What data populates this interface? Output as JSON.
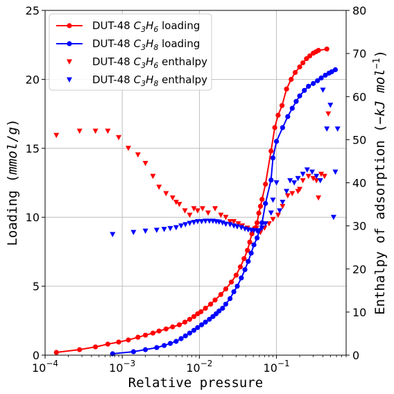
{
  "chart_data": {
    "type": "scatter",
    "xlabel": "Relative pressure",
    "ylabel_left": "Loading (mmol/g)",
    "ylabel_right": "Enthalpy of adsorption (−kJ mol⁻¹)",
    "xscale": "log",
    "xlim": [
      0.0001,
      0.8
    ],
    "ylim_left": [
      0,
      25
    ],
    "ylim_right": [
      0,
      80
    ],
    "grid": true,
    "legend_placement": "top-left",
    "x_ticks": [
      {
        "value": 0.0001,
        "base": "10",
        "exp": "−4"
      },
      {
        "value": 0.001,
        "base": "10",
        "exp": "−3"
      },
      {
        "value": 0.01,
        "base": "10",
        "exp": "−2"
      },
      {
        "value": 0.1,
        "base": "10",
        "exp": "−1"
      }
    ],
    "y_left_ticks": [
      0,
      5,
      10,
      15,
      20,
      25
    ],
    "y_right_ticks": [
      0,
      10,
      20,
      30,
      40,
      50,
      60,
      70,
      80
    ],
    "series": [
      {
        "name": "DUT-48 C3H6 loading",
        "legend_prefix": "DUT-48 ",
        "legend_chem": [
          "C",
          "3",
          "H",
          "6"
        ],
        "legend_suffix": " loading",
        "axis": "left",
        "style": "line-circle",
        "color": "#ff0000",
        "points": [
          [
            0.00014,
            0.2
          ],
          [
            0.00028,
            0.4
          ],
          [
            0.00045,
            0.6
          ],
          [
            0.00065,
            0.8
          ],
          [
            0.0009,
            0.95
          ],
          [
            0.0012,
            1.1
          ],
          [
            0.0016,
            1.3
          ],
          [
            0.002,
            1.45
          ],
          [
            0.0025,
            1.6
          ],
          [
            0.003,
            1.75
          ],
          [
            0.0037,
            1.9
          ],
          [
            0.0045,
            2.05
          ],
          [
            0.0055,
            2.2
          ],
          [
            0.0065,
            2.4
          ],
          [
            0.0075,
            2.6
          ],
          [
            0.0085,
            2.8
          ],
          [
            0.0095,
            3.0
          ],
          [
            0.0105,
            3.15
          ],
          [
            0.012,
            3.4
          ],
          [
            0.014,
            3.7
          ],
          [
            0.016,
            4.0
          ],
          [
            0.019,
            4.4
          ],
          [
            0.022,
            4.8
          ],
          [
            0.026,
            5.3
          ],
          [
            0.03,
            5.8
          ],
          [
            0.034,
            6.4
          ],
          [
            0.038,
            7.0
          ],
          [
            0.042,
            7.6
          ],
          [
            0.045,
            8.2
          ],
          [
            0.048,
            8.8
          ],
          [
            0.052,
            9.2
          ],
          [
            0.056,
            9.6
          ],
          [
            0.059,
            10.3
          ],
          [
            0.062,
            10.8
          ],
          [
            0.065,
            11.3
          ],
          [
            0.072,
            12.4
          ],
          [
            0.085,
            14.8
          ],
          [
            0.095,
            16.5
          ],
          [
            0.105,
            17.4
          ],
          [
            0.118,
            18.1
          ],
          [
            0.135,
            19.3
          ],
          [
            0.155,
            20.0
          ],
          [
            0.175,
            20.5
          ],
          [
            0.2,
            20.9
          ],
          [
            0.22,
            21.2
          ],
          [
            0.245,
            21.5
          ],
          [
            0.27,
            21.7
          ],
          [
            0.3,
            21.9
          ],
          [
            0.325,
            22.0
          ],
          [
            0.35,
            22.1
          ],
          [
            0.45,
            22.2
          ]
        ]
      },
      {
        "name": "DUT-48 C3H8 loading",
        "legend_prefix": "DUT-48 ",
        "legend_chem": [
          "C",
          "3",
          "H",
          "8"
        ],
        "legend_suffix": " loading",
        "axis": "left",
        "style": "line-circle",
        "color": "#0000ff",
        "points": [
          [
            0.00075,
            0.1
          ],
          [
            0.0014,
            0.25
          ],
          [
            0.002,
            0.4
          ],
          [
            0.0028,
            0.55
          ],
          [
            0.0035,
            0.7
          ],
          [
            0.0042,
            0.85
          ],
          [
            0.005,
            1.0
          ],
          [
            0.0058,
            1.2
          ],
          [
            0.0066,
            1.4
          ],
          [
            0.0075,
            1.6
          ],
          [
            0.0085,
            1.8
          ],
          [
            0.0095,
            2.0
          ],
          [
            0.0107,
            2.2
          ],
          [
            0.012,
            2.4
          ],
          [
            0.0135,
            2.6
          ],
          [
            0.015,
            2.8
          ],
          [
            0.0165,
            3.0
          ],
          [
            0.018,
            3.2
          ],
          [
            0.02,
            3.4
          ],
          [
            0.022,
            3.7
          ],
          [
            0.025,
            4.1
          ],
          [
            0.028,
            4.6
          ],
          [
            0.031,
            5.0
          ],
          [
            0.035,
            5.6
          ],
          [
            0.039,
            6.2
          ],
          [
            0.043,
            6.8
          ],
          [
            0.047,
            7.4
          ],
          [
            0.051,
            8.0
          ],
          [
            0.056,
            8.5
          ],
          [
            0.06,
            9.0
          ],
          [
            0.065,
            9.6
          ],
          [
            0.072,
            11.0
          ],
          [
            0.085,
            12.7
          ],
          [
            0.09,
            14.3
          ],
          [
            0.1,
            15.5
          ],
          [
            0.12,
            16.5
          ],
          [
            0.14,
            17.3
          ],
          [
            0.16,
            17.9
          ],
          [
            0.18,
            18.4
          ],
          [
            0.2,
            18.8
          ],
          [
            0.23,
            19.2
          ],
          [
            0.26,
            19.5
          ],
          [
            0.3,
            19.7
          ],
          [
            0.34,
            19.9
          ],
          [
            0.38,
            20.1
          ],
          [
            0.43,
            20.3
          ],
          [
            0.48,
            20.45
          ],
          [
            0.52,
            20.55
          ],
          [
            0.58,
            20.7
          ]
        ]
      },
      {
        "name": "DUT-48 C3H6 enthalpy",
        "legend_prefix": "DUT-48 ",
        "legend_chem": [
          "C",
          "3",
          "H",
          "6"
        ],
        "legend_suffix": " enthalpy",
        "axis": "right",
        "style": "triangle-down",
        "color": "#ff0000",
        "points": [
          [
            0.00014,
            51
          ],
          [
            0.00028,
            52
          ],
          [
            0.00045,
            52
          ],
          [
            0.00065,
            52
          ],
          [
            0.0009,
            50.5
          ],
          [
            0.0012,
            48
          ],
          [
            0.0016,
            46.5
          ],
          [
            0.002,
            44.5
          ],
          [
            0.0025,
            41.5
          ],
          [
            0.003,
            39
          ],
          [
            0.0037,
            37.5
          ],
          [
            0.0045,
            36.5
          ],
          [
            0.005,
            35.5
          ],
          [
            0.0055,
            35
          ],
          [
            0.0065,
            33.5
          ],
          [
            0.0075,
            32.5
          ],
          [
            0.0085,
            34
          ],
          [
            0.0095,
            33.5
          ],
          [
            0.011,
            34
          ],
          [
            0.013,
            33
          ],
          [
            0.016,
            34
          ],
          [
            0.019,
            32.5
          ],
          [
            0.022,
            32
          ],
          [
            0.025,
            31
          ],
          [
            0.028,
            31
          ],
          [
            0.032,
            30.5
          ],
          [
            0.036,
            30
          ],
          [
            0.042,
            29.5
          ],
          [
            0.048,
            29
          ],
          [
            0.055,
            29.5
          ],
          [
            0.062,
            28.5
          ],
          [
            0.07,
            29.5
          ],
          [
            0.08,
            30.5
          ],
          [
            0.09,
            31.5
          ],
          [
            0.105,
            32.5
          ],
          [
            0.12,
            34.5
          ],
          [
            0.14,
            37
          ],
          [
            0.16,
            37.5
          ],
          [
            0.19,
            38
          ],
          [
            0.2,
            38.5
          ],
          [
            0.22,
            40.5
          ],
          [
            0.26,
            41.5
          ],
          [
            0.3,
            41
          ],
          [
            0.33,
            40.5
          ],
          [
            0.35,
            36.5
          ],
          [
            0.38,
            42
          ],
          [
            0.42,
            41.5
          ],
          [
            0.47,
            56
          ]
        ]
      },
      {
        "name": "DUT-48 C3H8 enthalpy",
        "legend_prefix": "DUT-48 ",
        "legend_chem": [
          "C",
          "3",
          "H",
          "8"
        ],
        "legend_suffix": " enthalpy",
        "axis": "right",
        "style": "triangle-down",
        "color": "#0000ff",
        "points": [
          [
            0.00075,
            28
          ],
          [
            0.0014,
            28.5
          ],
          [
            0.002,
            28.8
          ],
          [
            0.0028,
            29
          ],
          [
            0.0035,
            29.2
          ],
          [
            0.0042,
            29.4
          ],
          [
            0.005,
            29.6
          ],
          [
            0.0058,
            30
          ],
          [
            0.0066,
            30.3
          ],
          [
            0.0075,
            30.6
          ],
          [
            0.0085,
            30.8
          ],
          [
            0.0095,
            31
          ],
          [
            0.0107,
            31
          ],
          [
            0.012,
            31.1
          ],
          [
            0.0135,
            31.1
          ],
          [
            0.015,
            31.1
          ],
          [
            0.0165,
            31
          ],
          [
            0.018,
            30.9
          ],
          [
            0.02,
            30.7
          ],
          [
            0.022,
            30.4
          ],
          [
            0.025,
            30.3
          ],
          [
            0.028,
            30
          ],
          [
            0.031,
            29.8
          ],
          [
            0.035,
            29.6
          ],
          [
            0.039,
            29.3
          ],
          [
            0.043,
            29.1
          ],
          [
            0.047,
            29
          ],
          [
            0.051,
            28.9
          ],
          [
            0.056,
            28.8
          ],
          [
            0.06,
            28.9
          ],
          [
            0.065,
            29.5
          ],
          [
            0.072,
            30.5
          ],
          [
            0.085,
            33
          ],
          [
            0.09,
            36
          ],
          [
            0.1,
            40
          ],
          [
            0.11,
            33.5
          ],
          [
            0.12,
            35.5
          ],
          [
            0.135,
            38
          ],
          [
            0.15,
            40.5
          ],
          [
            0.17,
            40
          ],
          [
            0.19,
            41
          ],
          [
            0.22,
            42
          ],
          [
            0.25,
            43
          ],
          [
            0.29,
            42.5
          ],
          [
            0.33,
            41.5
          ],
          [
            0.37,
            40.5
          ],
          [
            0.4,
            61.5
          ],
          [
            0.45,
            52.5
          ],
          [
            0.5,
            58
          ],
          [
            0.55,
            32
          ],
          [
            0.62,
            52.5
          ],
          [
            0.58,
            42.5
          ]
        ]
      }
    ]
  }
}
